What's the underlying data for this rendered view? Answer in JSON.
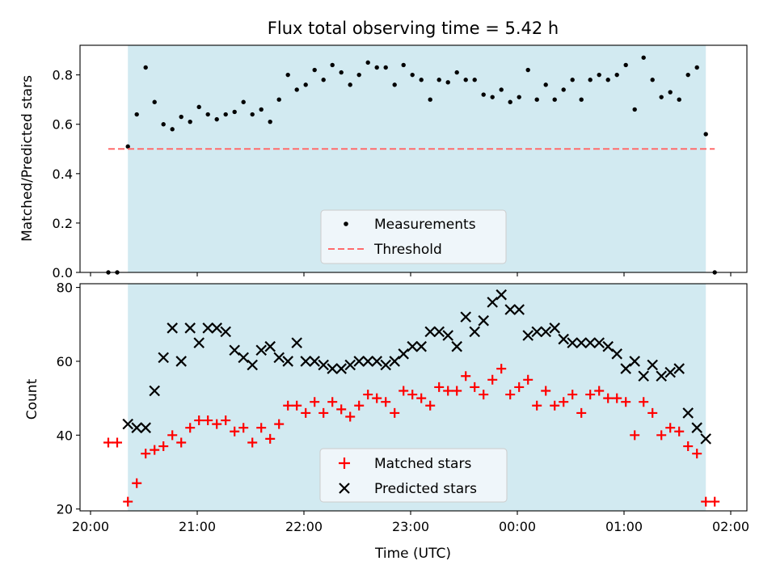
{
  "chart_data": [
    {
      "type": "scatter",
      "title": "Flux total observing time = 5.42 h",
      "xlabel": "",
      "ylabel": "Matched/Predicted stars",
      "ylim": [
        0,
        0.92
      ],
      "yticks": [
        "0.0",
        "0.2",
        "0.4",
        "0.6",
        "0.8"
      ],
      "shaded_interval": [
        "20:21",
        "01:46"
      ],
      "shade_color": "#add8e6",
      "legend_location": "lower center",
      "series": [
        {
          "name": "Measurements",
          "marker": "dot",
          "color": "#000000",
          "x": [
            "20:10",
            "20:15",
            "20:21",
            "20:26",
            "20:31",
            "20:36",
            "20:41",
            "20:46",
            "20:51",
            "20:56",
            "21:01",
            "21:06",
            "21:11",
            "21:16",
            "21:21",
            "21:26",
            "21:31",
            "21:36",
            "21:41",
            "21:46",
            "21:51",
            "21:56",
            "22:01",
            "22:06",
            "22:11",
            "22:16",
            "22:21",
            "22:26",
            "22:31",
            "22:36",
            "22:41",
            "22:46",
            "22:51",
            "22:56",
            "23:01",
            "23:06",
            "23:11",
            "23:16",
            "23:21",
            "23:26",
            "23:31",
            "23:36",
            "23:41",
            "23:46",
            "23:51",
            "23:56",
            "00:01",
            "00:06",
            "00:11",
            "00:16",
            "00:21",
            "00:26",
            "00:31",
            "00:36",
            "00:41",
            "00:46",
            "00:51",
            "00:56",
            "01:01",
            "01:06",
            "01:11",
            "01:16",
            "01:21",
            "01:26",
            "01:31",
            "01:36",
            "01:41",
            "01:46",
            "01:51"
          ],
          "values": [
            0.0,
            0.0,
            0.51,
            0.64,
            0.83,
            0.69,
            0.6,
            0.58,
            0.63,
            0.61,
            0.67,
            0.64,
            0.62,
            0.64,
            0.65,
            0.69,
            0.64,
            0.66,
            0.61,
            0.7,
            0.8,
            0.74,
            0.76,
            0.82,
            0.78,
            0.84,
            0.81,
            0.76,
            0.8,
            0.85,
            0.83,
            0.83,
            0.76,
            0.84,
            0.8,
            0.78,
            0.7,
            0.78,
            0.77,
            0.81,
            0.78,
            0.78,
            0.72,
            0.71,
            0.74,
            0.69,
            0.71,
            0.82,
            0.7,
            0.76,
            0.7,
            0.74,
            0.78,
            0.7,
            0.78,
            0.8,
            0.78,
            0.8,
            0.84,
            0.66,
            0.87,
            0.78,
            0.71,
            0.73,
            0.7,
            0.8,
            0.83,
            0.56,
            0.0
          ]
        },
        {
          "name": "Threshold",
          "style": "dashed",
          "color": "#ff6b6b",
          "x": [
            "20:10",
            "01:51"
          ],
          "values": [
            0.5,
            0.5
          ]
        }
      ]
    },
    {
      "type": "scatter",
      "title": "",
      "xlabel": "Time (UTC)",
      "ylabel": "Count",
      "ylim": [
        19.5,
        81
      ],
      "yticks": [
        "20",
        "40",
        "60",
        "80"
      ],
      "xticks": [
        "20:00",
        "21:00",
        "22:00",
        "23:00",
        "00:00",
        "01:00",
        "02:00"
      ],
      "shaded_interval": [
        "20:21",
        "01:46"
      ],
      "shade_color": "#add8e6",
      "legend_location": "lower center",
      "series": [
        {
          "name": "Matched stars",
          "marker": "+",
          "color": "#ff0000",
          "x": [
            "20:10",
            "20:15",
            "20:21",
            "20:26",
            "20:31",
            "20:36",
            "20:41",
            "20:46",
            "20:51",
            "20:56",
            "21:01",
            "21:06",
            "21:11",
            "21:16",
            "21:21",
            "21:26",
            "21:31",
            "21:36",
            "21:41",
            "21:46",
            "21:51",
            "21:56",
            "22:01",
            "22:06",
            "22:11",
            "22:16",
            "22:21",
            "22:26",
            "22:31",
            "22:36",
            "22:41",
            "22:46",
            "22:51",
            "22:56",
            "23:01",
            "23:06",
            "23:11",
            "23:16",
            "23:21",
            "23:26",
            "23:31",
            "23:36",
            "23:41",
            "23:46",
            "23:51",
            "23:56",
            "00:01",
            "00:06",
            "00:11",
            "00:16",
            "00:21",
            "00:26",
            "00:31",
            "00:36",
            "00:41",
            "00:46",
            "00:51",
            "00:56",
            "01:01",
            "01:06",
            "01:11",
            "01:16",
            "01:21",
            "01:26",
            "01:31",
            "01:36",
            "01:41",
            "01:46",
            "01:51"
          ],
          "values": [
            38,
            38,
            22,
            27,
            35,
            36,
            37,
            40,
            38,
            42,
            44,
            44,
            43,
            44,
            41,
            42,
            38,
            42,
            39,
            43,
            48,
            48,
            46,
            49,
            46,
            49,
            47,
            45,
            48,
            51,
            50,
            49,
            46,
            52,
            51,
            50,
            48,
            53,
            52,
            52,
            56,
            53,
            51,
            55,
            58,
            51,
            53,
            55,
            48,
            52,
            48,
            49,
            51,
            46,
            51,
            52,
            50,
            50,
            49,
            40,
            49,
            46,
            40,
            42,
            41,
            37,
            35,
            22,
            22
          ]
        },
        {
          "name": "Predicted stars",
          "marker": "x",
          "color": "#000000",
          "x": [
            "20:21",
            "20:26",
            "20:31",
            "20:36",
            "20:41",
            "20:46",
            "20:51",
            "20:56",
            "21:01",
            "21:06",
            "21:11",
            "21:16",
            "21:21",
            "21:26",
            "21:31",
            "21:36",
            "21:41",
            "21:46",
            "21:51",
            "21:56",
            "22:01",
            "22:06",
            "22:11",
            "22:16",
            "22:21",
            "22:26",
            "22:31",
            "22:36",
            "22:41",
            "22:46",
            "22:51",
            "22:56",
            "23:01",
            "23:06",
            "23:11",
            "23:16",
            "23:21",
            "23:26",
            "23:31",
            "23:36",
            "23:41",
            "23:46",
            "23:51",
            "23:56",
            "00:01",
            "00:06",
            "00:11",
            "00:16",
            "00:21",
            "00:26",
            "00:31",
            "00:36",
            "00:41",
            "00:46",
            "00:51",
            "00:56",
            "01:01",
            "01:06",
            "01:11",
            "01:16",
            "01:21",
            "01:26",
            "01:31",
            "01:36",
            "01:41",
            "01:46"
          ],
          "values": [
            43,
            42,
            42,
            52,
            61,
            69,
            60,
            69,
            65,
            69,
            69,
            68,
            63,
            61,
            59,
            63,
            64,
            61,
            60,
            65,
            60,
            60,
            59,
            58,
            58,
            59,
            60,
            60,
            60,
            59,
            60,
            62,
            64,
            64,
            68,
            68,
            67,
            64,
            72,
            68,
            71,
            76,
            78,
            74,
            74,
            67,
            68,
            68,
            69,
            66,
            65,
            65,
            65,
            65,
            64,
            62,
            58,
            60,
            56,
            59,
            56,
            57,
            58,
            46,
            42,
            39
          ]
        }
      ]
    }
  ]
}
